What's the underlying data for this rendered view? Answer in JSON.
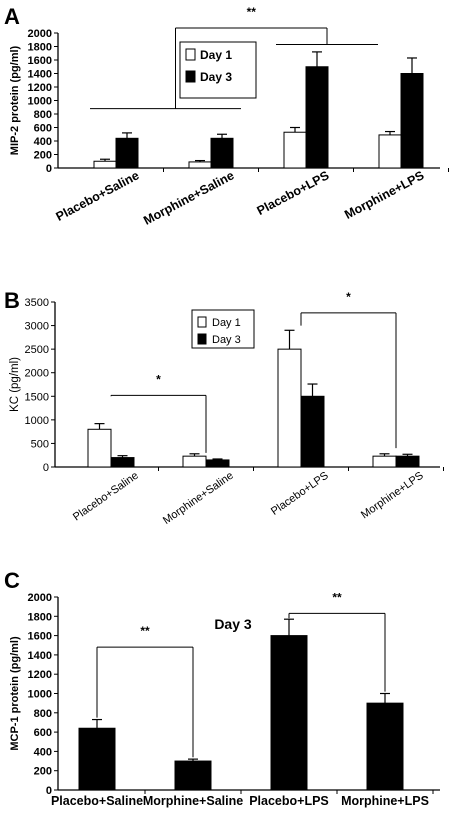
{
  "chart_data": [
    {
      "panel": "A",
      "type": "bar",
      "ylabel": "MIP-2 protein (pg/ml)",
      "ylim": [
        0,
        2000
      ],
      "yticks": [
        "0",
        "200",
        "400",
        "600",
        "800",
        "1000",
        "1200",
        "1400",
        "1600",
        "1800",
        "2000"
      ],
      "categories": [
        "Placebo+Saline",
        "Morphine+Saline",
        "Placebo+LPS",
        "Morphine+LPS"
      ],
      "series": [
        {
          "name": "Day 1",
          "color": "#ffffff",
          "values": [
            100,
            90,
            530,
            490
          ],
          "errors": [
            30,
            20,
            70,
            50
          ]
        },
        {
          "name": "Day 3",
          "color": "#000000",
          "values": [
            440,
            440,
            1500,
            1400
          ],
          "errors": [
            80,
            60,
            220,
            230
          ]
        }
      ],
      "significance": [
        {
          "label": "",
          "type": "line",
          "from": 0,
          "to": 1,
          "y": 880
        },
        {
          "label": "",
          "type": "line",
          "from": 2,
          "to": 3,
          "y": 1830
        },
        {
          "label": "**",
          "type": "bracket",
          "from_y": 880,
          "to_y": 1830,
          "y": 2130
        }
      ],
      "legend_position": "top-center"
    },
    {
      "panel": "B",
      "type": "bar",
      "ylabel": "KC (pg/ml)",
      "ylim": [
        0,
        3500
      ],
      "yticks": [
        "0",
        "500",
        "1000",
        "1500",
        "2000",
        "2500",
        "3000",
        "3500"
      ],
      "categories": [
        "Placebo+Saline",
        "Morphine+Saline",
        "Placebo+LPS",
        "Morphine+LPS"
      ],
      "series": [
        {
          "name": "Day 1",
          "color": "#ffffff",
          "values": [
            800,
            230,
            2500,
            230
          ],
          "errors": [
            120,
            50,
            400,
            50
          ]
        },
        {
          "name": "Day 3",
          "color": "#000000",
          "values": [
            200,
            150,
            1500,
            230
          ],
          "errors": [
            40,
            20,
            260,
            40
          ]
        }
      ],
      "significance": [
        {
          "label": "*",
          "from": 0,
          "to": 1,
          "y": 1520,
          "ends_at": [
            1500,
            300
          ]
        },
        {
          "label": "*",
          "from": 2,
          "to": 3,
          "y": 3270,
          "ends_at": [
            3000,
            400
          ]
        }
      ],
      "legend_position": "top-center"
    },
    {
      "panel": "C",
      "type": "bar",
      "title": "Day 3",
      "ylabel": "MCP-1 protein (pg/ml)",
      "ylim": [
        0,
        2000
      ],
      "yticks": [
        "0",
        "200",
        "400",
        "600",
        "800",
        "1000",
        "1200",
        "1400",
        "1600",
        "1800",
        "2000"
      ],
      "categories": [
        "Placebo+Saline",
        "Morphine+Saline",
        "Placebo+LPS",
        "Morphine+LPS"
      ],
      "series": [
        {
          "name": "Day 3",
          "color": "#000000",
          "values": [
            640,
            300,
            1600,
            900
          ],
          "errors": [
            90,
            20,
            170,
            100
          ]
        }
      ],
      "significance": [
        {
          "label": "**",
          "from": 0,
          "to": 1,
          "y": 1480,
          "ends_at": [
            750,
            340
          ]
        },
        {
          "label": "**",
          "from": 2,
          "to": 3,
          "y": 1830,
          "ends_at": [
            1780,
            1020
          ]
        }
      ]
    }
  ]
}
